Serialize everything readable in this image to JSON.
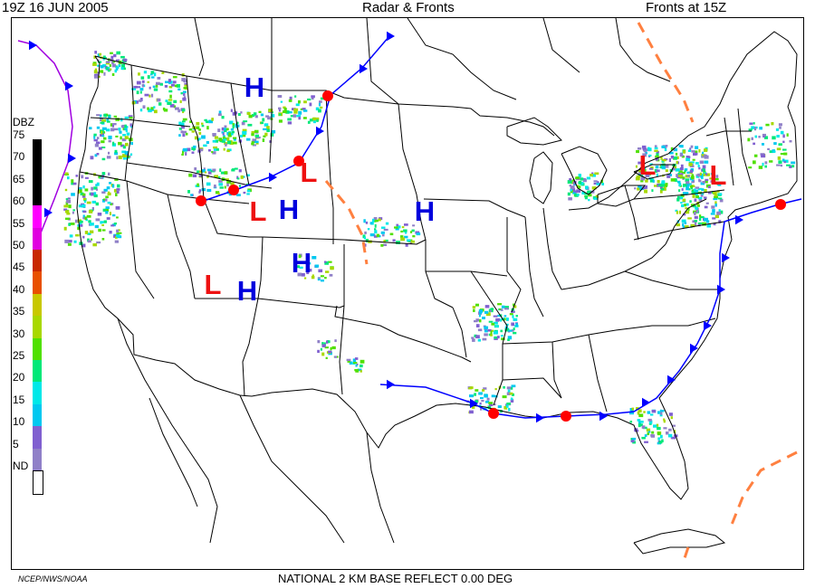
{
  "header": {
    "time": "19Z  16 JUN  2005",
    "title": "Radar & Fronts",
    "fronts_time": "Fronts at 15Z"
  },
  "legend": {
    "title": "DBZ",
    "levels": [
      {
        "label": "75",
        "color": "#000000"
      },
      {
        "label": "70",
        "color": "#000000"
      },
      {
        "label": "65",
        "color": "#000000"
      },
      {
        "label": "60",
        "color": "#ff00ff"
      },
      {
        "label": "55",
        "color": "#e000e0"
      },
      {
        "label": "50",
        "color": "#c82800"
      },
      {
        "label": "45",
        "color": "#e85000"
      },
      {
        "label": "40",
        "color": "#c8c800"
      },
      {
        "label": "35",
        "color": "#a8d800"
      },
      {
        "label": "30",
        "color": "#50e000"
      },
      {
        "label": "25",
        "color": "#00e878"
      },
      {
        "label": "20",
        "color": "#00e8e8"
      },
      {
        "label": "15",
        "color": "#00c8f0"
      },
      {
        "label": "10",
        "color": "#8060d0"
      },
      {
        "label": "5",
        "color": "#9080c8"
      },
      {
        "label": "ND",
        "color": "#ffffff"
      }
    ]
  },
  "pressure_systems": [
    {
      "type": "H",
      "color": "#0000dd",
      "lon": -111.2,
      "lat": 49.8
    },
    {
      "type": "H",
      "color": "#0000dd",
      "lon": -108.0,
      "lat": 40.3
    },
    {
      "type": "H",
      "color": "#0000dd",
      "lon": -95.5,
      "lat": 40.2
    },
    {
      "type": "H",
      "color": "#0000dd",
      "lon": -106.8,
      "lat": 36.2
    },
    {
      "type": "H",
      "color": "#0000dd",
      "lon": -111.8,
      "lat": 34.0
    },
    {
      "type": "L",
      "color": "#ee1111",
      "lon": -106.2,
      "lat": 43.2
    },
    {
      "type": "L",
      "color": "#ee1111",
      "lon": -110.8,
      "lat": 40.2
    },
    {
      "type": "L",
      "color": "#ee1111",
      "lon": -115.0,
      "lat": 34.5
    },
    {
      "type": "L",
      "color": "#ee1111",
      "lon": -75.0,
      "lat": 43.8
    },
    {
      "type": "L",
      "color": "#ee1111",
      "lon": -68.5,
      "lat": 43.0
    }
  ],
  "colors": {
    "cold_front": "#0000ff",
    "warm_front": "#ff0000",
    "occluded_front": "#a000e0",
    "trough": "#ff8040",
    "map_lines": "#000000"
  },
  "footer": {
    "source": "NCEP/NWS/NOAA",
    "product": "NATIONAL 2 KM BASE REFLECT 0.00 DEG"
  }
}
